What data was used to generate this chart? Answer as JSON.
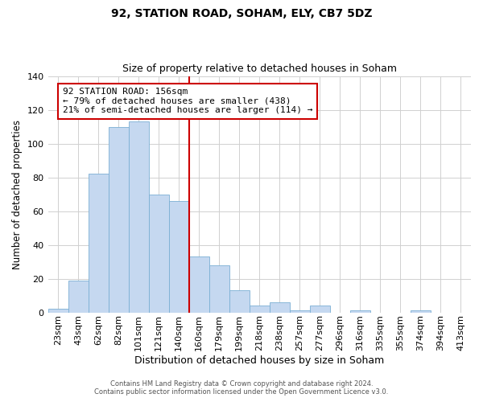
{
  "title": "92, STATION ROAD, SOHAM, ELY, CB7 5DZ",
  "subtitle": "Size of property relative to detached houses in Soham",
  "xlabel": "Distribution of detached houses by size in Soham",
  "ylabel": "Number of detached properties",
  "bin_labels": [
    "23sqm",
    "43sqm",
    "62sqm",
    "82sqm",
    "101sqm",
    "121sqm",
    "140sqm",
    "160sqm",
    "179sqm",
    "199sqm",
    "218sqm",
    "238sqm",
    "257sqm",
    "277sqm",
    "296sqm",
    "316sqm",
    "335sqm",
    "355sqm",
    "374sqm",
    "394sqm",
    "413sqm"
  ],
  "bar_values": [
    2,
    19,
    82,
    110,
    113,
    70,
    66,
    33,
    28,
    13,
    4,
    6,
    1,
    4,
    0,
    1,
    0,
    0,
    1,
    0,
    0
  ],
  "bar_color": "#c5d8f0",
  "bar_edge_color": "#7bafd4",
  "ylim": [
    0,
    140
  ],
  "yticks": [
    0,
    20,
    40,
    60,
    80,
    100,
    120,
    140
  ],
  "vline_x": 6.5,
  "vline_color": "#cc0000",
  "annotation_text": "92 STATION ROAD: 156sqm\n← 79% of detached houses are smaller (438)\n21% of semi-detached houses are larger (114) →",
  "annotation_box_color": "#ffffff",
  "annotation_box_edge": "#cc0000",
  "footer_line1": "Contains HM Land Registry data © Crown copyright and database right 2024.",
  "footer_line2": "Contains public sector information licensed under the Open Government Licence v3.0.",
  "background_color": "#ffffff",
  "grid_color": "#d0d0d0",
  "fig_width": 6.0,
  "fig_height": 5.0,
  "title_fontsize": 10,
  "subtitle_fontsize": 9,
  "ylabel_fontsize": 8.5,
  "xlabel_fontsize": 9,
  "tick_fontsize": 8,
  "annot_fontsize": 8,
  "footer_fontsize": 6.0
}
